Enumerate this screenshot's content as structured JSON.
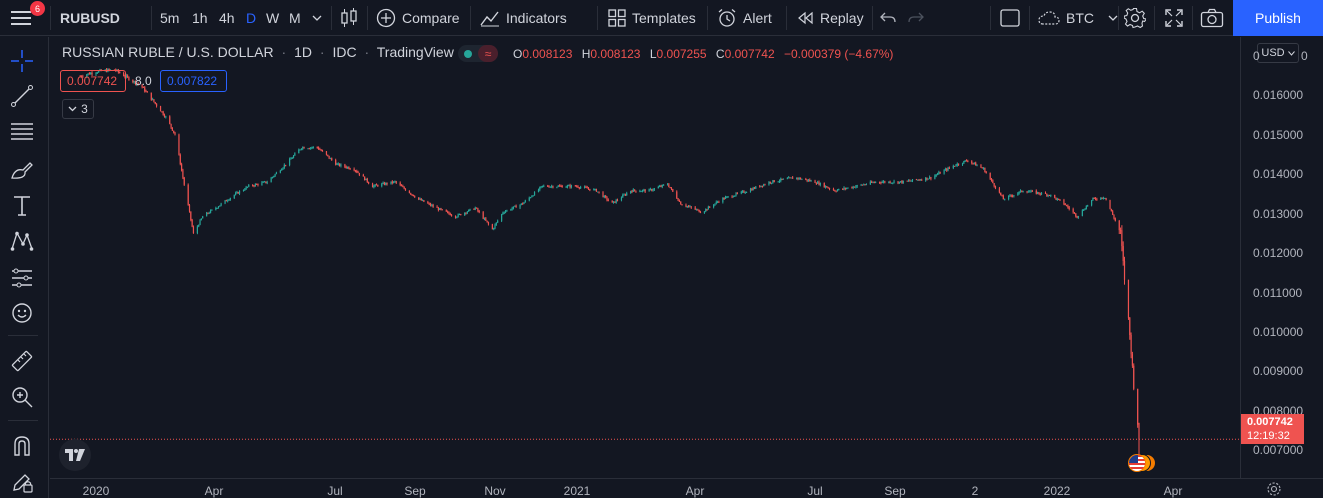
{
  "toolbar": {
    "menu_badge": "6",
    "symbol": "RUBUSD",
    "intervals": [
      "5m",
      "1h",
      "4h",
      "D",
      "W",
      "M"
    ],
    "active_interval": "D",
    "compare": "Compare",
    "indicators": "Indicators",
    "templates": "Templates",
    "alert": "Alert",
    "replay": "Replay",
    "currency": "BTC",
    "publish": "Publish"
  },
  "legend": {
    "title": "RUSSIAN RUBLE / U.S. DOLLAR",
    "interval": "1D",
    "source": "IDC",
    "platform": "TradingView",
    "o_label": "O",
    "o_value": "0.008123",
    "h_label": "H",
    "h_value": "0.008123",
    "l_label": "L",
    "l_value": "0.007255",
    "c_label": "C",
    "c_value": "0.007742",
    "change": "−0.000379 (−4.67%)",
    "sell_price": "0.007742",
    "spread": "8.0",
    "buy_price": "0.007822",
    "indicator_count": "3"
  },
  "price_axis": {
    "currency": "USD",
    "ticks": [
      "0.016000",
      "0.015000",
      "0.014000",
      "0.013000",
      "0.012000",
      "0.011000",
      "0.010000",
      "0.009000",
      "0.008000",
      "0.007000"
    ],
    "last_price": "0.007742",
    "countdown": "12:19:32"
  },
  "time_axis": {
    "ticks": [
      "2020",
      "Apr",
      "Jul",
      "Sep",
      "Nov",
      "2021",
      "Apr",
      "Jul",
      "Sep",
      "2",
      "2022",
      "Apr"
    ]
  },
  "colors": {
    "up": "#26a69a",
    "down": "#ef5350",
    "accent": "#2962ff",
    "bg": "#131722"
  },
  "chart_data": {
    "type": "candlestick",
    "symbol": "RUBUSD",
    "y_range": [
      0.0068,
      0.0171
    ],
    "anchors": [
      [
        "2019-12-25",
        0.01615
      ],
      [
        "2020-01-06",
        0.01625
      ],
      [
        "2020-01-20",
        0.0163
      ],
      [
        "2020-02-10",
        0.0159
      ],
      [
        "2020-02-28",
        0.0152
      ],
      [
        "2020-03-06",
        0.0148
      ],
      [
        "2020-03-12",
        0.0138
      ],
      [
        "2020-03-20",
        0.0125
      ],
      [
        "2020-03-27",
        0.0129
      ],
      [
        "2020-04-06",
        0.0131
      ],
      [
        "2020-04-20",
        0.0134
      ],
      [
        "2020-05-01",
        0.0136
      ],
      [
        "2020-05-15",
        0.0137
      ],
      [
        "2020-06-01",
        0.0142
      ],
      [
        "2020-06-10",
        0.0145
      ],
      [
        "2020-06-22",
        0.0145
      ],
      [
        "2020-07-07",
        0.0141
      ],
      [
        "2020-07-20",
        0.014
      ],
      [
        "2020-08-03",
        0.0136
      ],
      [
        "2020-08-20",
        0.0137
      ],
      [
        "2020-09-07",
        0.0133
      ],
      [
        "2020-09-20",
        0.0131
      ],
      [
        "2020-10-05",
        0.0129
      ],
      [
        "2020-10-20",
        0.0131
      ],
      [
        "2020-11-02",
        0.0126
      ],
      [
        "2020-11-10",
        0.013
      ],
      [
        "2020-11-25",
        0.0132
      ],
      [
        "2020-12-10",
        0.0136
      ],
      [
        "2021-01-05",
        0.0136
      ],
      [
        "2021-01-20",
        0.0135
      ],
      [
        "2021-02-01",
        0.0132
      ],
      [
        "2021-02-15",
        0.0135
      ],
      [
        "2021-03-01",
        0.0135
      ],
      [
        "2021-03-15",
        0.01365
      ],
      [
        "2021-03-25",
        0.0132
      ],
      [
        "2021-04-10",
        0.013
      ],
      [
        "2021-04-25",
        0.0133
      ],
      [
        "2021-05-15",
        0.0135
      ],
      [
        "2021-06-01",
        0.0137
      ],
      [
        "2021-06-20",
        0.0138
      ],
      [
        "2021-07-05",
        0.0137
      ],
      [
        "2021-07-20",
        0.0135
      ],
      [
        "2021-08-05",
        0.0136
      ],
      [
        "2021-08-20",
        0.0137
      ],
      [
        "2021-09-10",
        0.0137
      ],
      [
        "2021-10-01",
        0.0138
      ],
      [
        "2021-10-20",
        0.0141
      ],
      [
        "2021-10-29",
        0.0142
      ],
      [
        "2021-11-10",
        0.014
      ],
      [
        "2021-11-25",
        0.0133
      ],
      [
        "2021-12-10",
        0.0135
      ],
      [
        "2021-12-30",
        0.0134
      ],
      [
        "2022-01-10",
        0.0132
      ],
      [
        "2022-01-20",
        0.0129
      ],
      [
        "2022-02-01",
        0.0133
      ],
      [
        "2022-02-10",
        0.01335
      ],
      [
        "2022-02-18",
        0.0128
      ],
      [
        "2022-02-22",
        0.0125
      ],
      [
        "2022-02-24",
        0.0118
      ],
      [
        "2022-02-28",
        0.0105
      ],
      [
        "2022-03-02",
        0.0098
      ],
      [
        "2022-03-04",
        0.009
      ],
      [
        "2022-03-07",
        0.00812
      ],
      [
        "2022-03-08",
        0.00774
      ]
    ],
    "last_candle": {
      "open": 0.008123,
      "high": 0.008123,
      "low": 0.007255,
      "close": 0.007742
    }
  }
}
